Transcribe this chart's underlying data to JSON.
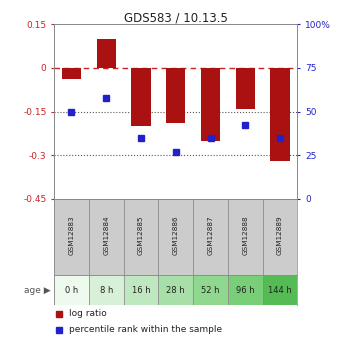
{
  "title": "GDS583 / 10.13.5",
  "samples": [
    "GSM12883",
    "GSM12884",
    "GSM12885",
    "GSM12886",
    "GSM12887",
    "GSM12888",
    "GSM12889"
  ],
  "ages": [
    "0 h",
    "8 h",
    "16 h",
    "28 h",
    "52 h",
    "96 h",
    "144 h"
  ],
  "log_ratios": [
    -0.04,
    0.1,
    -0.2,
    -0.19,
    -0.25,
    -0.14,
    -0.32
  ],
  "percentile_ranks": [
    50,
    58,
    35,
    27,
    35,
    42,
    35
  ],
  "ylim_left": [
    -0.45,
    0.15
  ],
  "ylim_right": [
    0,
    100
  ],
  "bar_color": "#aa1111",
  "dot_color": "#2222cc",
  "dashed_line_color": "#cc2222",
  "dotted_line_color": "#555555",
  "age_colors": [
    "#edfaed",
    "#d8f0d8",
    "#c0e8c0",
    "#a8dfa8",
    "#90d890",
    "#78cf78",
    "#55bb55"
  ],
  "sample_bg_color": "#cccccc",
  "bar_width": 0.55,
  "legend_log_ratio": "log ratio",
  "legend_percentile": "percentile rank within the sample"
}
